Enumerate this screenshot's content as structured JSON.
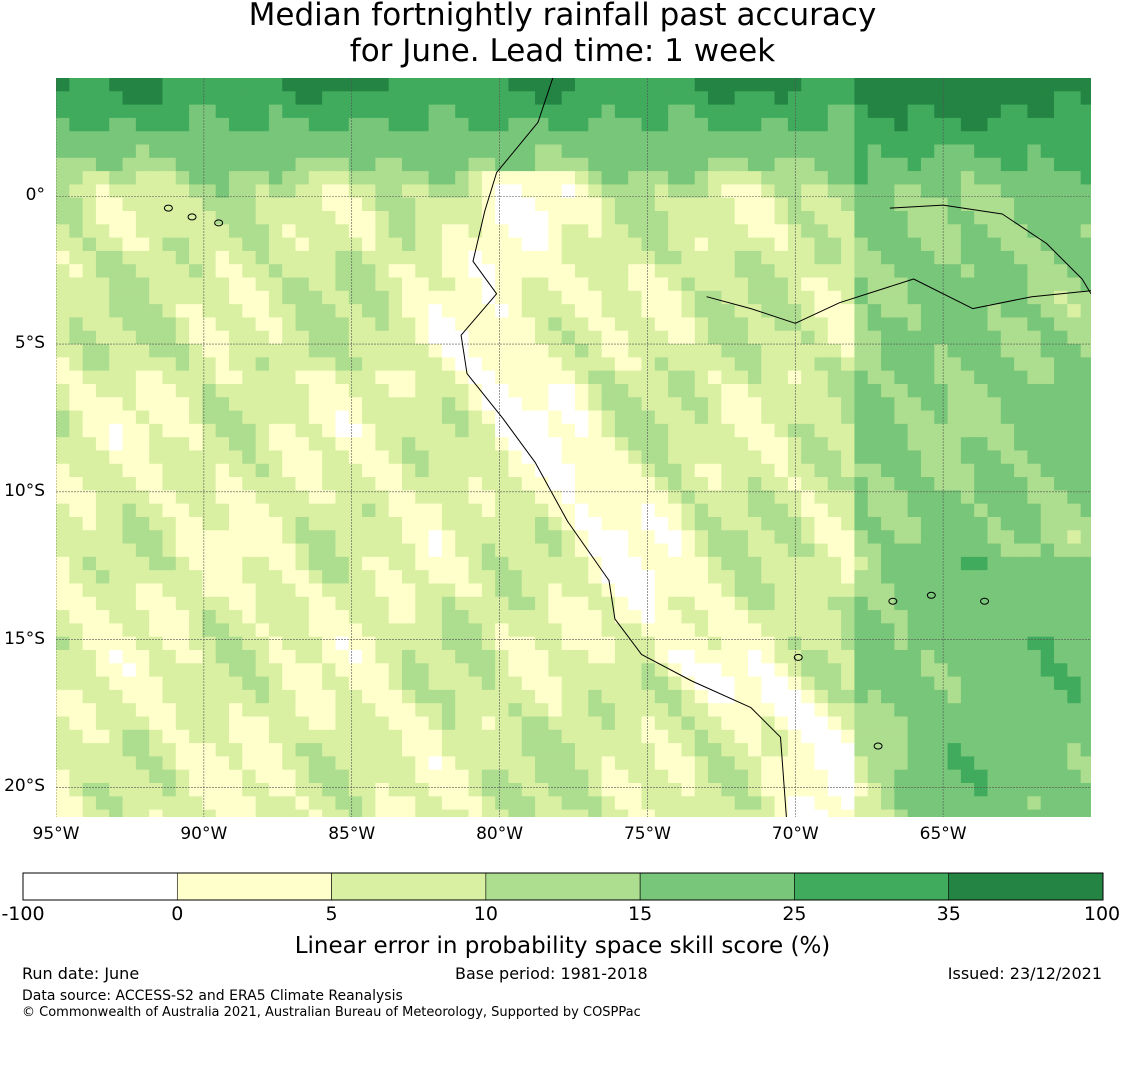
{
  "title_line1": "Median fortnightly rainfall past accuracy",
  "title_line2": "for June. Lead time: 1 week",
  "map": {
    "lon_range": [
      -95,
      -60
    ],
    "lat_range": [
      -21,
      4
    ],
    "lat_ticks": [
      {
        "value": 0,
        "label": "0°"
      },
      {
        "value": -5,
        "label": "5°S"
      },
      {
        "value": -10,
        "label": "10°S"
      },
      {
        "value": -15,
        "label": "15°S"
      },
      {
        "value": -20,
        "label": "20°S"
      }
    ],
    "lon_ticks": [
      {
        "value": -95,
        "label": "95°W"
      },
      {
        "value": -90,
        "label": "90°W"
      },
      {
        "value": -85,
        "label": "85°W"
      },
      {
        "value": -80,
        "label": "80°W"
      },
      {
        "value": -75,
        "label": "75°W"
      },
      {
        "value": -70,
        "label": "70°W"
      },
      {
        "value": -65,
        "label": "65°W"
      }
    ],
    "gridlines": true,
    "coastline": [
      [
        -78.2,
        4
      ],
      [
        -78.7,
        2.5
      ],
      [
        -80.1,
        0.8
      ],
      [
        -80.5,
        -0.5
      ],
      [
        -80.9,
        -2.2
      ],
      [
        -80.1,
        -3.3
      ],
      [
        -81.3,
        -4.7
      ],
      [
        -81.1,
        -6
      ],
      [
        -79.9,
        -7.5
      ],
      [
        -78.8,
        -9
      ],
      [
        -77.7,
        -11
      ],
      [
        -76.3,
        -13
      ],
      [
        -76.1,
        -14.3
      ],
      [
        -75.2,
        -15.5
      ],
      [
        -73.5,
        -16.4
      ],
      [
        -71.5,
        -17.3
      ],
      [
        -70.5,
        -18.3
      ],
      [
        -70.3,
        -21
      ]
    ],
    "rivers": [
      [
        [
          -66.8,
          -0.4
        ],
        [
          -65,
          -0.3
        ],
        [
          -63,
          -0.6
        ],
        [
          -61.5,
          -1.6
        ],
        [
          -60.3,
          -2.8
        ],
        [
          -60,
          -3.3
        ]
      ],
      [
        [
          -73,
          -3.4
        ],
        [
          -71.5,
          -3.8
        ],
        [
          -70,
          -4.3
        ],
        [
          -68.5,
          -3.6
        ],
        [
          -66,
          -2.8
        ],
        [
          -64,
          -3.8
        ],
        [
          -62,
          -3.4
        ],
        [
          -60,
          -3.2
        ]
      ]
    ],
    "islands": [
      {
        "lon": -91.2,
        "lat": -0.4
      },
      {
        "lon": -90.4,
        "lat": -0.7
      },
      {
        "lon": -89.5,
        "lat": -0.9
      },
      {
        "lon": -69.9,
        "lat": -15.6
      },
      {
        "lon": -67.2,
        "lat": -18.6
      },
      {
        "lon": -65.4,
        "lat": -13.5
      },
      {
        "lon": -63.6,
        "lat": -13.7
      },
      {
        "lon": -66.7,
        "lat": -13.7
      }
    ]
  },
  "colorbar": {
    "label": "Linear error in probability space skill score (%)",
    "bins": [
      {
        "from": "-100",
        "to": "0",
        "color": "#ffffff"
      },
      {
        "from": "0",
        "to": "5",
        "color": "#ffffcc"
      },
      {
        "from": "5",
        "to": "10",
        "color": "#d9f0a3"
      },
      {
        "from": "10",
        "to": "15",
        "color": "#addd8e"
      },
      {
        "from": "15",
        "to": "25",
        "color": "#78c679"
      },
      {
        "from": "25",
        "to": "35",
        "color": "#41ab5d"
      },
      {
        "from": "35",
        "to": "100",
        "color": "#238443"
      }
    ],
    "ticks": [
      "-100",
      "0",
      "5",
      "10",
      "15",
      "25",
      "35",
      "100"
    ]
  },
  "footer": {
    "run_date": "Run date: June",
    "base_period": "Base period: 1981-2018",
    "issued": "Issued: 23/12/2021",
    "data_source": "Data source: ACCESS-S2 and ERA5 Climate Reanalysis",
    "copyright": "© Commonwealth of Australia 2021, Australian Bureau of Meteorology, Supported by COSPPac"
  }
}
